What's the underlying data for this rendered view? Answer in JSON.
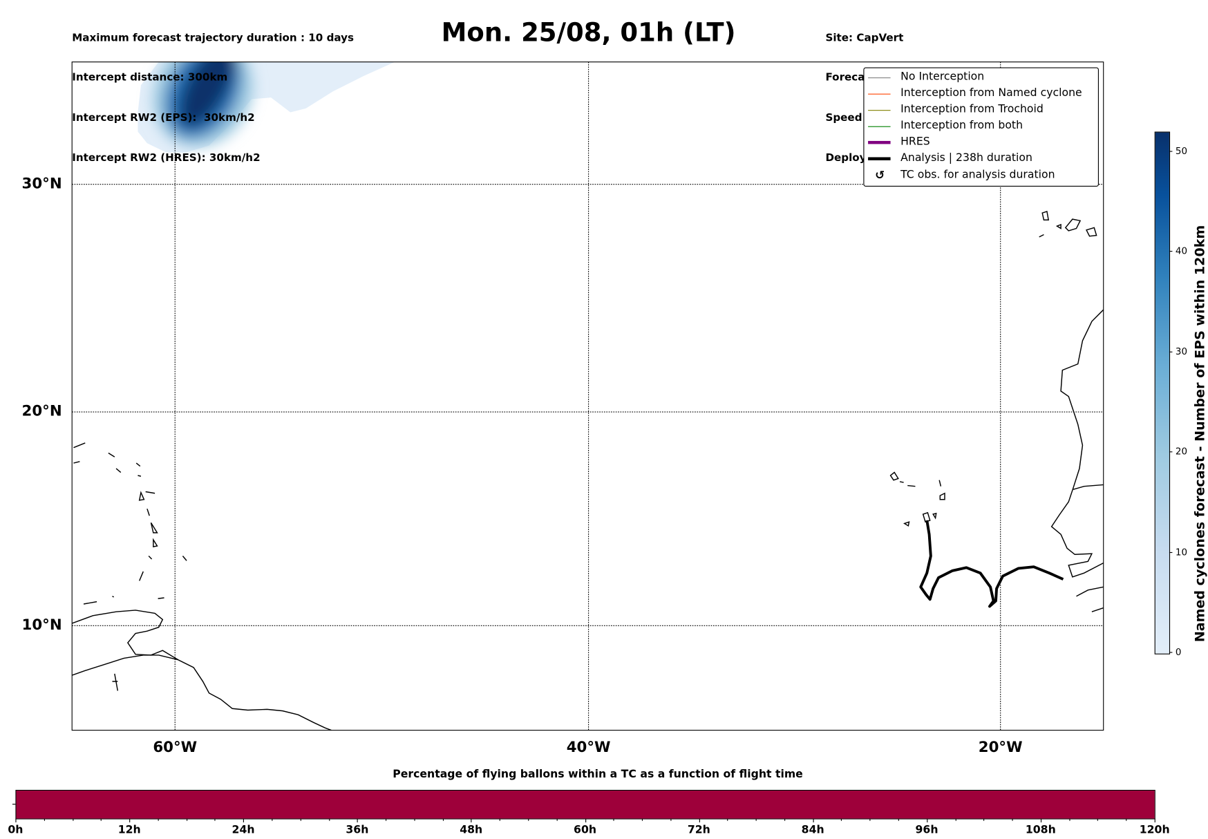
{
  "header": {
    "left": [
      "Maximum forecast trajectory duration : 10 days",
      "Intercept distance: 300km",
      "Intercept RW2 (EPS):  30km/h2",
      "Intercept RW2 (HRES): 30km/h2"
    ],
    "title": "Mon. 25/08, 01h (LT)",
    "right": [
      "Site: CapVert",
      "Forecast date: Sun. 24/08, 12h (UTC)",
      "Speed function: U10_speed_Helikite_4",
      "Deployment date: Mon. 25/08, 02h (UTC)"
    ]
  },
  "chart_data": [
    {
      "type": "heatmap",
      "title": "Mon. 25/08, 01h (LT)",
      "map_extent": {
        "lon": [
          -65,
          -15
        ],
        "lat": [
          5,
          35
        ]
      },
      "lat_ticks": [
        "30°N",
        "20°N",
        "10°N"
      ],
      "lon_ticks": [
        "60°W",
        "40°W",
        "20°W"
      ],
      "density_peak": {
        "lon": -59,
        "lat": 33,
        "value": 52
      },
      "analysis_track": {
        "label": "Analysis | 238h duration",
        "points": [
          [
            -23.8,
            14.8
          ],
          [
            -23.6,
            13.8
          ],
          [
            -23.6,
            12.6
          ],
          [
            -24.0,
            11.6
          ],
          [
            -23.3,
            11.2
          ],
          [
            -22.9,
            12.0
          ],
          [
            -21.5,
            12.7
          ],
          [
            -20.9,
            12.8
          ],
          [
            -20.1,
            12.5
          ],
          [
            -19.5,
            11.5
          ],
          [
            -19.6,
            11.0
          ],
          [
            -19.3,
            11.4
          ],
          [
            -18.9,
            12.4
          ],
          [
            -18.0,
            12.8
          ],
          [
            -17.2,
            12.8
          ],
          [
            -16.4,
            12.6
          ],
          [
            -15.8,
            12.2
          ]
        ]
      },
      "legend": {
        "placement": "top-right",
        "items": [
          {
            "label": "No Interception",
            "color": "#808080",
            "style": "thin"
          },
          {
            "label": "Interception from Named cyclone",
            "color": "#ff4500",
            "style": "thin"
          },
          {
            "label": "Interception from Trochoid",
            "color": "#808000",
            "style": "thin"
          },
          {
            "label": "Interception from both",
            "color": "#008000",
            "style": "thin"
          },
          {
            "label": "HRES",
            "color": "#800080",
            "style": "thick"
          },
          {
            "label": "Analysis | 238h duration",
            "color": "#000000",
            "style": "thick"
          },
          {
            "label": "TC obs. for analysis duration",
            "color": "#000000",
            "style": "marker"
          }
        ]
      },
      "colorbar": {
        "label": "Named cyclones forecast - Number of EPS within 120km",
        "range": [
          0,
          52
        ],
        "ticks": [
          "0",
          "10",
          "20",
          "30",
          "40",
          "50"
        ],
        "tick_values": [
          0,
          10,
          20,
          30,
          40,
          50
        ]
      }
    },
    {
      "type": "bar",
      "title": "Percentage of flying ballons within a TC as a function of flight time",
      "x_ticks": [
        "0h",
        "12h",
        "24h",
        "36h",
        "48h",
        "60h",
        "72h",
        "84h",
        "96h",
        "108h",
        "120h"
      ],
      "xlim": [
        0,
        120
      ],
      "fill_color": "#9e003a",
      "segments": [
        {
          "from": 0,
          "to": 120,
          "color": "#9e003a"
        }
      ]
    }
  ]
}
